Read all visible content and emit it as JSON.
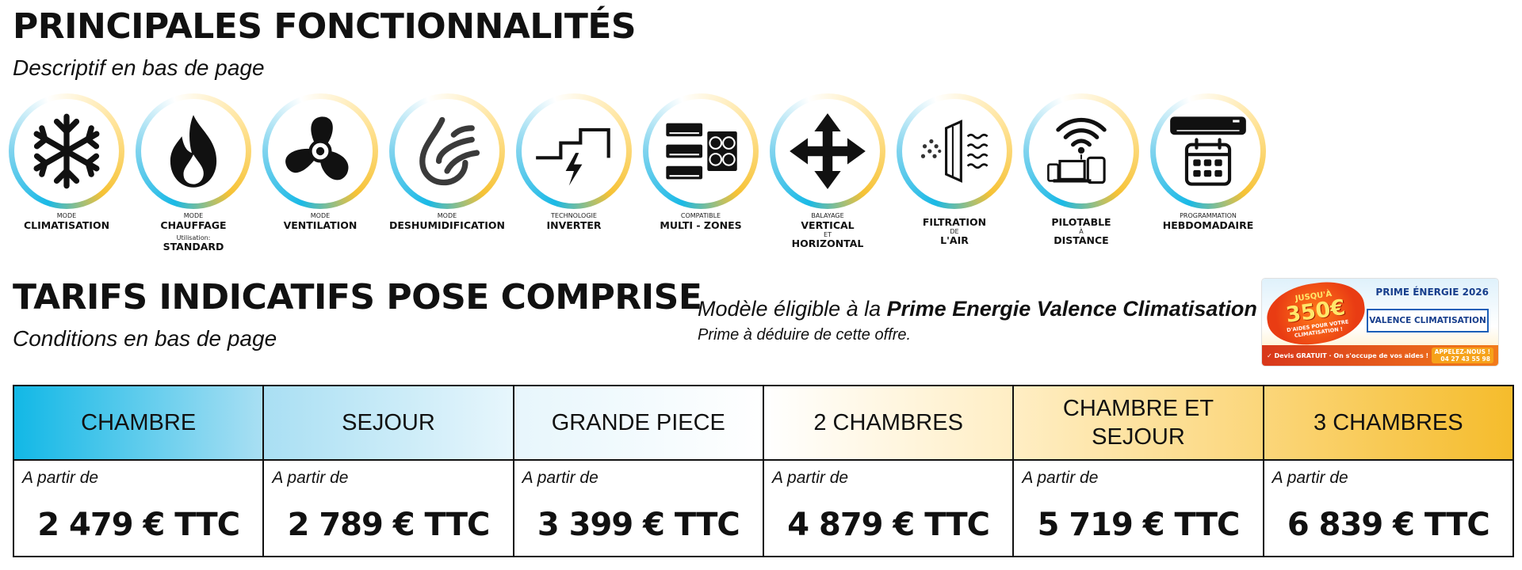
{
  "header": {
    "title": "PRINCIPALES FONCTIONNALITÉS",
    "subtitle": "Descriptif en bas de page"
  },
  "features": [
    {
      "icon": "snowflake-icon",
      "top": "MODE",
      "main": "CLIMATISATION",
      "mid": "",
      "bottom": "",
      "extra_small": "",
      "extra_big": ""
    },
    {
      "icon": "flame-icon",
      "top": "MODE",
      "main": "CHAUFFAGE",
      "mid": "",
      "bottom": "",
      "extra_small": "Utilisation:",
      "extra_big": "STANDARD"
    },
    {
      "icon": "fan-icon",
      "top": "MODE",
      "main": "VENTILATION",
      "mid": "",
      "bottom": "",
      "extra_small": "",
      "extra_big": ""
    },
    {
      "icon": "drop-icon",
      "top": "MODE",
      "main": "DESHUMIDIFICATION",
      "mid": "",
      "bottom": "",
      "extra_small": "",
      "extra_big": ""
    },
    {
      "icon": "inverter-icon",
      "top": "TECHNOLOGIE",
      "main": "INVERTER",
      "mid": "",
      "bottom": "",
      "extra_small": "",
      "extra_big": ""
    },
    {
      "icon": "multi-zone-icon",
      "top": "COMPATIBLE",
      "main": "MULTI - ZONES",
      "mid": "",
      "bottom": "",
      "extra_small": "",
      "extra_big": ""
    },
    {
      "icon": "four-arrows-icon",
      "top": "BALAYAGE",
      "main": "VERTICAL",
      "mid": "ET",
      "bottom": "HORIZONTAL",
      "extra_small": "",
      "extra_big": ""
    },
    {
      "icon": "air-filter-icon",
      "top": "",
      "main": "FILTRATION",
      "mid": "DE",
      "bottom": "L'AIR",
      "extra_small": "",
      "extra_big": ""
    },
    {
      "icon": "wifi-devices-icon",
      "top": "",
      "main": "PILOTABLE",
      "mid": "À",
      "bottom": "DISTANCE",
      "extra_small": "",
      "extra_big": ""
    },
    {
      "icon": "calendar-ac-icon",
      "top": "PROGRAMMATION",
      "main": "HEBDOMADAIRE",
      "mid": "",
      "bottom": "",
      "extra_small": "",
      "extra_big": ""
    }
  ],
  "tarifs": {
    "title": "TARIFS INDICATIFS POSE COMPRISE",
    "subtitle": "Conditions en bas de page"
  },
  "prime": {
    "line1_prefix": "Modèle éligible à la ",
    "line1_bold": "Prime Energie Valence Climatisation",
    "line2": "Prime à déduire de cette offre."
  },
  "banner": {
    "burst_top": "JUSQU'À",
    "burst_amount": "350€",
    "burst_text": "D'AIDES POUR VOTRE CLIMATISATION !",
    "title": "PRIME ÉNERGIE 2026",
    "box": "VALENCE CLIMATISATION",
    "strip_left": "✓ Devis GRATUIT · On s'occupe de vos aides !",
    "strip_right_1": "APPELEZ-NOUS !",
    "strip_right_2": "04 27 43 55 98"
  },
  "pricing": {
    "from_label": "A partir de",
    "columns": [
      {
        "label": "CHAMBRE",
        "price": "2 479 € TTC"
      },
      {
        "label": "SEJOUR",
        "price": "2 789 € TTC"
      },
      {
        "label": "GRANDE PIECE",
        "price": "3 399 € TTC"
      },
      {
        "label": "2 CHAMBRES",
        "price": "4 879 € TTC"
      },
      {
        "label": "CHAMBRE ET SEJOUR",
        "price": "5 719 € TTC"
      },
      {
        "label": "3 CHAMBRES",
        "price": "6 839 € TTC"
      }
    ]
  },
  "colors": {
    "accent_blue": "#12b8e6",
    "accent_yellow": "#f5bc2c"
  }
}
